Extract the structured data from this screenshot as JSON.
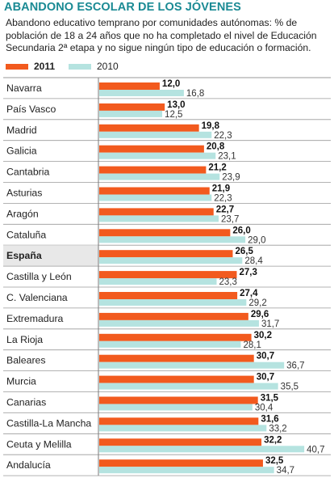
{
  "title": "ABANDONO ESCOLAR DE LOS JÓVENES",
  "subtitle": "Abandono educativo temprano por comunidades autónomas: % de población de 18 a 24 años que no ha completado el nivel de Educación Secundaria 2ª etapa y no sigue ningún tipo de educación o formación.",
  "colors": {
    "s2011": "#f25a1e",
    "s2010": "#b5e3e0",
    "title": "#1a8a94",
    "highlight_row": "#e8e8e8"
  },
  "chart_data": {
    "type": "bar",
    "orientation": "horizontal",
    "title": "ABANDONO ESCOLAR DE LOS JÓVENES",
    "legend_position": "top-left",
    "xlim": [
      0,
      45
    ],
    "highlight_category": "España",
    "categories": [
      "Navarra",
      "País Vasco",
      "Madrid",
      "Galicia",
      "Cantabria",
      "Asturias",
      "Aragón",
      "Cataluña",
      "España",
      "Castilla y León",
      "C. Valenciana",
      "Extremadura",
      "La Rioja",
      "Baleares",
      "Murcia",
      "Canarias",
      "Castilla-La Mancha",
      "Ceuta y Melilla",
      "Andalucía"
    ],
    "series": [
      {
        "name": "2011",
        "values": [
          12.0,
          13.0,
          19.8,
          20.8,
          21.2,
          21.9,
          22.7,
          26.0,
          26.5,
          27.3,
          27.4,
          29.6,
          30.2,
          30.7,
          30.7,
          31.5,
          31.6,
          32.2,
          32.5
        ],
        "labels": [
          "12,0",
          "13,0",
          "19,8",
          "20,8",
          "21,2",
          "21,9",
          "22,7",
          "26,0",
          "26,5",
          "27,3",
          "27,4",
          "29,6",
          "30,2",
          "30,7",
          "30,7",
          "31,5",
          "31,6",
          "32,2",
          "32,5"
        ]
      },
      {
        "name": "2010",
        "values": [
          16.8,
          12.5,
          22.3,
          23.1,
          23.9,
          22.3,
          23.7,
          29.0,
          28.4,
          23.3,
          29.2,
          31.7,
          28.1,
          36.7,
          35.5,
          30.4,
          33.2,
          40.7,
          34.7
        ],
        "labels": [
          "16,8",
          "12,5",
          "22,3",
          "23,1",
          "23,9",
          "22,3",
          "23,7",
          "29,0",
          "28,4",
          "23,3",
          "29,2",
          "31,7",
          "28,1",
          "36,7",
          "35,5",
          "30,4",
          "33,2",
          "40,7",
          "34,7"
        ]
      }
    ]
  }
}
